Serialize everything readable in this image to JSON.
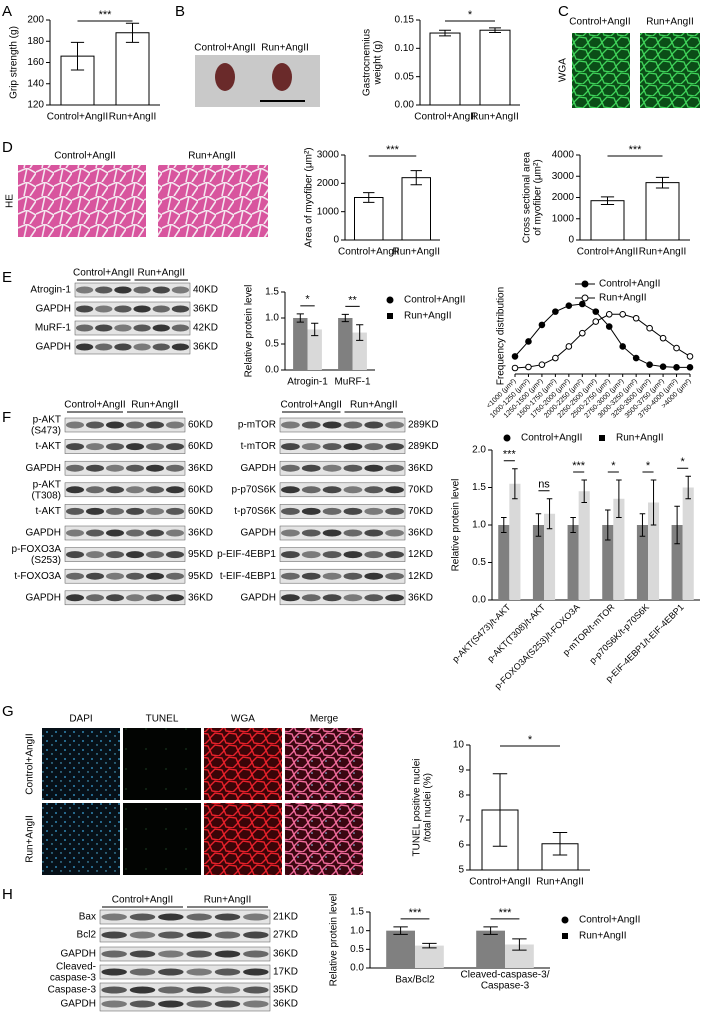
{
  "panels": {
    "letters": [
      "A",
      "B",
      "C",
      "D",
      "E",
      "F",
      "G",
      "H"
    ],
    "B": {
      "labels": [
        "Control+AngII",
        "Run+AngII"
      ]
    },
    "C": {
      "labels": [
        "Control+AngII",
        "Run+AngII"
      ],
      "stain": "WGA"
    },
    "D": {
      "labels": [
        "Control+AngII",
        "Run+AngII"
      ],
      "stain": "HE"
    },
    "E": {
      "groups": [
        "Control+AngII",
        "Run+AngII"
      ],
      "rows": [
        {
          "label": "Atrogin-1",
          "kd": "40KD"
        },
        {
          "label": "GAPDH",
          "kd": "36KD"
        },
        {
          "label": "MuRF-1",
          "kd": "42KD"
        },
        {
          "label": "GAPDH",
          "kd": "36KD"
        }
      ]
    },
    "F_left": {
      "groups": [
        "Control+AngII",
        "Run+AngII"
      ],
      "rows": [
        {
          "label": "p-AKT\n(S473)",
          "kd": "60KD"
        },
        {
          "label": "t-AKT",
          "kd": "60KD"
        },
        {
          "label": "GAPDH",
          "kd": "36KD"
        },
        {
          "label": "p-AKT\n(T308)",
          "kd": "60KD"
        },
        {
          "label": "t-AKT",
          "kd": "60KD"
        },
        {
          "label": "GAPDH",
          "kd": "36KD"
        },
        {
          "label": "p-FOXO3A\n(S253)",
          "kd": "95KD"
        },
        {
          "label": "t-FOXO3A",
          "kd": "95KD"
        },
        {
          "label": "GAPDH",
          "kd": "36KD"
        }
      ]
    },
    "F_right": {
      "groups": [
        "Control+AngII",
        "Run+AngII"
      ],
      "rows": [
        {
          "label": "p-mTOR",
          "kd": "289KD"
        },
        {
          "label": "t-mTOR",
          "kd": "289KD"
        },
        {
          "label": "GAPDH",
          "kd": "36KD"
        },
        {
          "label": "p-p70S6K",
          "kd": "70KD"
        },
        {
          "label": "t-p70S6K",
          "kd": "70KD"
        },
        {
          "label": "GAPDH",
          "kd": "36KD"
        },
        {
          "label": "p-EIF-4EBP1",
          "kd": "12KD"
        },
        {
          "label": "t-EIF-4EBP1",
          "kd": "12KD"
        },
        {
          "label": "GAPDH",
          "kd": "36KD"
        }
      ]
    },
    "G": {
      "columns": [
        "DAPI",
        "TUNEL",
        "WGA",
        "Merge"
      ],
      "rows": [
        "Control+AngII",
        "Run+AngII"
      ]
    },
    "H": {
      "groups": [
        "Control+AngII",
        "Run+AngII"
      ],
      "rows": [
        {
          "label": "Bax",
          "kd": "21KD"
        },
        {
          "label": "Bcl2",
          "kd": "27KD"
        },
        {
          "label": "GAPDH",
          "kd": "36KD"
        },
        {
          "label": "Cleaved-\ncaspase-3",
          "kd": "17KD"
        },
        {
          "label": "Caspase-3",
          "kd": "35KD"
        },
        {
          "label": "GAPDH",
          "kd": "36KD"
        }
      ]
    }
  },
  "chart_data": [
    {
      "type": "bar",
      "ylabel": "Grip strength (g)",
      "categories": [
        "Control+AngII",
        "Run+AngII"
      ],
      "values": [
        166,
        188
      ],
      "errors": [
        13,
        9
      ],
      "significance": "***",
      "ylim": [
        120,
        200
      ],
      "yticks": [
        120,
        140,
        160,
        180,
        200
      ],
      "color": "#ffffff"
    },
    {
      "type": "bar",
      "ylabel": "Gastrocnemius\nweight (g)",
      "categories": [
        "Control+AngII",
        "Run+AngII"
      ],
      "values": [
        0.127,
        0.132
      ],
      "errors": [
        0.005,
        0.004
      ],
      "significance": "*",
      "ylim": [
        0,
        0.15
      ],
      "yticks": [
        {
          "value": 0,
          "label": "0.00"
        },
        0.05,
        {
          "value": 0.1,
          "label": "0.10"
        },
        0.15
      ],
      "color": "#ffffff"
    },
    {
      "type": "bar",
      "ylabel": "Area of myofiber (μm²)",
      "categories": [
        "Control+AngII",
        "Run+AngII"
      ],
      "values": [
        1500,
        2200
      ],
      "errors": [
        170,
        250
      ],
      "significance": "***",
      "ylim": [
        0,
        3000
      ],
      "yticks": [
        0,
        1000,
        2000,
        3000
      ],
      "color": "#ffffff"
    },
    {
      "type": "bar",
      "ylabel": "Cross sectional area\nof myofiber (μm²)",
      "categories": [
        "Control+AngII",
        "Run+AngII"
      ],
      "values": [
        1850,
        2700
      ],
      "errors": [
        180,
        250
      ],
      "significance": "***",
      "ylim": [
        0,
        4000
      ],
      "yticks": [
        0,
        1000,
        2000,
        3000,
        4000
      ],
      "color": "#ffffff"
    },
    {
      "type": "bar",
      "ylabel": "Relative protein level",
      "categories": [
        "Atrogin-1",
        "MuRF-1"
      ],
      "series": [
        {
          "name": "Control+AngII",
          "color": "#808080",
          "marker": "circle",
          "values": [
            1.0,
            1.0
          ],
          "errors": [
            0.08,
            0.07
          ]
        },
        {
          "name": "Run+AngII",
          "color": "#d9d9d9",
          "marker": "square",
          "values": [
            0.78,
            0.72
          ],
          "errors": [
            0.12,
            0.15
          ]
        }
      ],
      "significance": [
        "*",
        "**"
      ],
      "ylim": [
        0,
        1.5
      ],
      "yticks": [
        {
          "value": 0,
          "label": "0.0"
        },
        0.5,
        {
          "value": 1,
          "label": "1.0"
        },
        1.5
      ],
      "legend": "right"
    },
    {
      "type": "line",
      "ylabel": "Frequency distribution",
      "categories": [
        "<1000 (μm²)",
        "1000-1250 (μm²)",
        "1250-1500 (μm²)",
        "1500-1750 (μm²)",
        "1750-2000 (μm²)",
        "2000-2250 (μm²)",
        "2250-2500 (μm²)",
        "2500-2750 (μm²)",
        "2750-3000 (μm²)",
        "3000-3250 (μm²)",
        "3250-3500 (μm²)",
        "3500-3750 (μm²)",
        "3750-4000 (μm²)",
        ">4000 (μm²)"
      ],
      "series": [
        {
          "name": "Control+AngII",
          "color": "#000000",
          "marker": "circle",
          "values": [
            3.5,
            8,
            13,
            17,
            18.8,
            19.3,
            17,
            12.5,
            6.5,
            3,
            1,
            0.4,
            0.2,
            0.2
          ]
        },
        {
          "name": "Run+AngII",
          "color": "#000000",
          "marker": "open-circle",
          "values": [
            0,
            0.3,
            1,
            3,
            6.5,
            10.5,
            14,
            16.2,
            16.2,
            15,
            12,
            9,
            6,
            3.5
          ]
        }
      ],
      "legend": "top"
    },
    {
      "type": "bar",
      "ylabel": "Relative protein level",
      "categories": [
        "p-AKT(S473)/t-AKT",
        "p-AKT(T308)/t-AKT",
        "p-FOXO3A(S253)/t-FOXO3A",
        "p-mTOR/t-mTOR",
        "p-p70S6K/t-p70S6K",
        "p-EIF-4EBP1/t-EIF-4EBP1"
      ],
      "series": [
        {
          "name": "Control+AngII",
          "color": "#808080",
          "marker": "circle",
          "values": [
            1.0,
            1.0,
            1.0,
            1.0,
            1.0,
            1.0
          ],
          "errors": [
            0.1,
            0.15,
            0.1,
            0.2,
            0.15,
            0.25
          ]
        },
        {
          "name": "Run+AngII",
          "color": "#d9d9d9",
          "marker": "square",
          "values": [
            1.55,
            1.15,
            1.45,
            1.35,
            1.3,
            1.5
          ],
          "errors": [
            0.2,
            0.2,
            0.15,
            0.25,
            0.3,
            0.15
          ]
        }
      ],
      "significance": [
        "***",
        "ns",
        "***",
        "*",
        "*",
        "*"
      ],
      "ylim": [
        0,
        2
      ],
      "yticks": [
        {
          "value": 0,
          "label": "0.0"
        },
        0.5,
        {
          "value": 1,
          "label": "1.0"
        },
        1.5,
        {
          "value": 2,
          "label": "2.0"
        }
      ],
      "legend": "top"
    },
    {
      "type": "bar",
      "ylabel": "TUNEL positive nuclei\n/total nuclei (%)",
      "categories": [
        "Control+AngII",
        "Run+AngII"
      ],
      "values": [
        7.4,
        6.05
      ],
      "errors": [
        1.45,
        0.45
      ],
      "significance": "*",
      "ylim": [
        5,
        10
      ],
      "yticks": [
        5,
        6,
        7,
        8,
        9,
        10
      ],
      "color": "#ffffff"
    },
    {
      "type": "bar",
      "ylabel": "Relative protein level",
      "categories": [
        "Bax/Bcl2",
        "Cleaved-caspase-3/\nCaspase-3"
      ],
      "series": [
        {
          "name": "Control+AngII",
          "color": "#808080",
          "marker": "circle",
          "values": [
            1.0,
            1.0
          ],
          "errors": [
            0.1,
            0.1
          ]
        },
        {
          "name": "Run+AngII",
          "color": "#d9d9d9",
          "marker": "square",
          "values": [
            0.6,
            0.63
          ],
          "errors": [
            0.06,
            0.15
          ]
        }
      ],
      "significance": [
        "***",
        "***"
      ],
      "ylim": [
        0,
        1.5
      ],
      "yticks": [
        {
          "value": 0,
          "label": "0.0"
        },
        0.5,
        {
          "value": 1,
          "label": "1.0"
        },
        1.5
      ],
      "legend": "right"
    }
  ]
}
